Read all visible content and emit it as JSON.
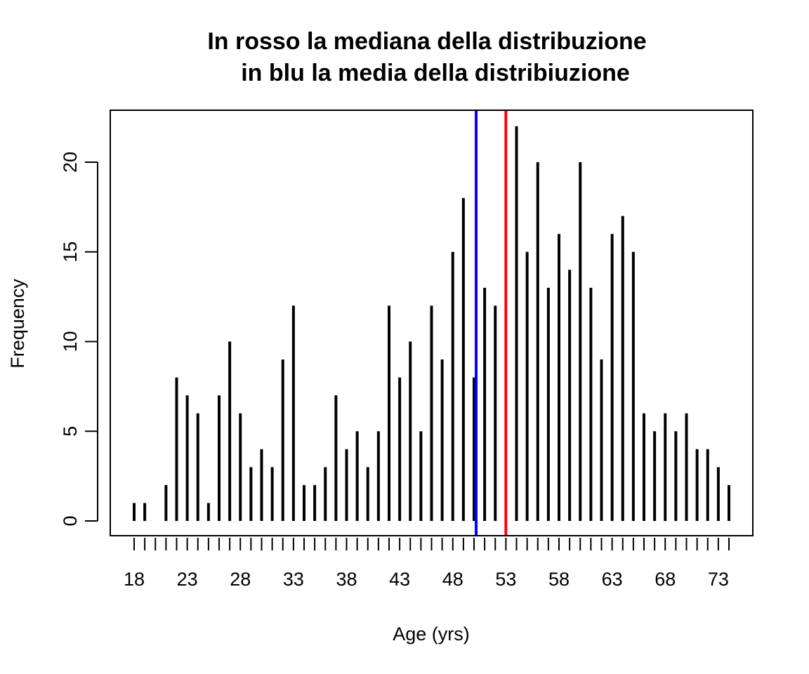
{
  "chart_data": {
    "type": "bar",
    "title_lines": [
      "In rosso la mediana della distribuzione",
      "in blu la media della distribiuzione"
    ],
    "xlabel": "Age (yrs)",
    "ylabel": "Frequency",
    "ylim": [
      0,
      22
    ],
    "yticks": [
      0,
      5,
      10,
      15,
      20
    ],
    "xtick_positions": [
      18,
      19,
      20,
      21,
      22,
      23,
      24,
      25,
      26,
      27,
      28,
      29,
      30,
      31,
      32,
      33,
      34,
      35,
      36,
      37,
      38,
      39,
      40,
      41,
      42,
      43,
      44,
      45,
      46,
      47,
      48,
      49,
      50,
      51,
      52,
      53,
      54,
      55,
      56,
      57,
      58,
      59,
      60,
      61,
      62,
      63,
      64,
      65,
      66,
      67,
      68,
      69,
      70,
      71,
      72,
      73,
      74
    ],
    "xtick_labels": [
      {
        "x": 18,
        "label": "18"
      },
      {
        "x": 23,
        "label": "23"
      },
      {
        "x": 28,
        "label": "28"
      },
      {
        "x": 33,
        "label": "33"
      },
      {
        "x": 38,
        "label": "38"
      },
      {
        "x": 43,
        "label": "43"
      },
      {
        "x": 48,
        "label": "48"
      },
      {
        "x": 53,
        "label": "53"
      },
      {
        "x": 58,
        "label": "58"
      },
      {
        "x": 63,
        "label": "63"
      },
      {
        "x": 68,
        "label": "68"
      },
      {
        "x": 73,
        "label": "73"
      }
    ],
    "x": [
      18,
      19,
      20,
      21,
      22,
      23,
      24,
      25,
      26,
      27,
      28,
      29,
      30,
      31,
      32,
      33,
      34,
      35,
      36,
      37,
      38,
      39,
      40,
      41,
      42,
      43,
      44,
      45,
      46,
      47,
      48,
      49,
      50,
      51,
      52,
      53,
      54,
      55,
      56,
      57,
      58,
      59,
      60,
      61,
      62,
      63,
      64,
      65,
      66,
      67,
      68,
      69,
      70,
      71,
      72,
      73,
      74
    ],
    "values": [
      1,
      1,
      0,
      2,
      8,
      7,
      6,
      1,
      7,
      10,
      6,
      3,
      4,
      3,
      9,
      12,
      2,
      2,
      3,
      7,
      4,
      5,
      3,
      5,
      12,
      8,
      10,
      5,
      12,
      9,
      15,
      18,
      8,
      13,
      12,
      0,
      22,
      15,
      20,
      13,
      16,
      14,
      20,
      13,
      9,
      16,
      17,
      15,
      6,
      5,
      6,
      5,
      6,
      4,
      4,
      3,
      2
    ],
    "bar_color": "#000000",
    "median": {
      "x": 53,
      "color": "#ff0000"
    },
    "mean": {
      "x": 50.2,
      "color": "#0000ff"
    }
  }
}
